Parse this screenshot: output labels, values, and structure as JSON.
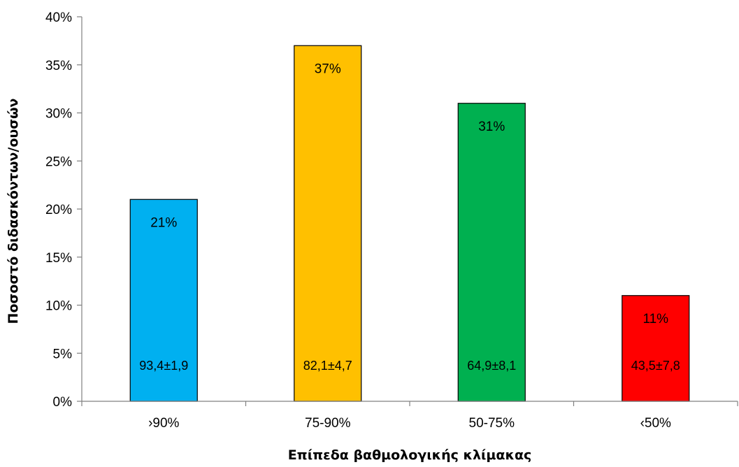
{
  "chart_data": {
    "type": "bar",
    "categories": [
      "›90%",
      "75-90%",
      "50-75%",
      "‹50%"
    ],
    "values": [
      21,
      37,
      31,
      11
    ],
    "value_labels": [
      "21%",
      "37%",
      "31%",
      "11%"
    ],
    "score_labels": [
      "93,4±1,9",
      "82,1±4,7",
      "64,9±8,1",
      "43,5±7,8"
    ],
    "bar_colors": [
      "#00B0F0",
      "#FFC000",
      "#00B050",
      "#FF0000"
    ],
    "xlabel": "Επίπεδα βαθμολογικής κλίμακας",
    "ylabel": "Ποσοστό διδασκόντων/ουσών",
    "ylim": [
      0,
      40
    ],
    "yticks": [
      0,
      5,
      10,
      15,
      20,
      25,
      30,
      35,
      40
    ],
    "ytick_labels": [
      "0%",
      "5%",
      "10%",
      "15%",
      "20%",
      "25%",
      "30%",
      "35%",
      "40%"
    ],
    "grid": false,
    "legend": "none"
  }
}
